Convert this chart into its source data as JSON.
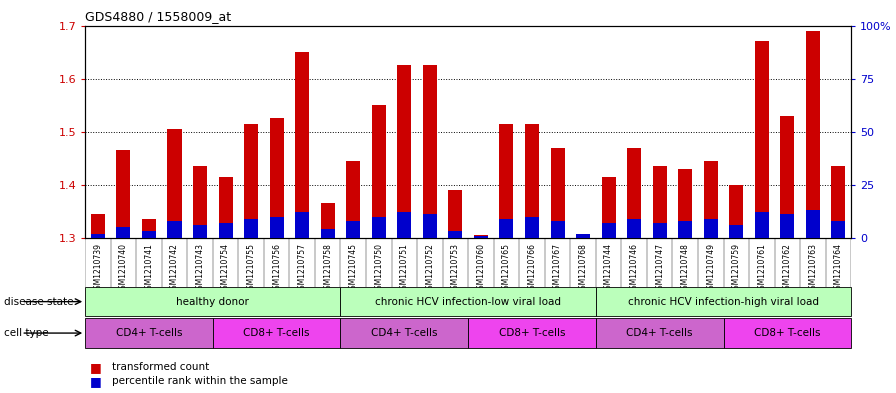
{
  "title": "GDS4880 / 1558009_at",
  "samples": [
    "GSM1210739",
    "GSM1210740",
    "GSM1210741",
    "GSM1210742",
    "GSM1210743",
    "GSM1210754",
    "GSM1210755",
    "GSM1210756",
    "GSM1210757",
    "GSM1210758",
    "GSM1210745",
    "GSM1210750",
    "GSM1210751",
    "GSM1210752",
    "GSM1210753",
    "GSM1210760",
    "GSM1210765",
    "GSM1210766",
    "GSM1210767",
    "GSM1210768",
    "GSM1210744",
    "GSM1210746",
    "GSM1210747",
    "GSM1210748",
    "GSM1210749",
    "GSM1210759",
    "GSM1210761",
    "GSM1210762",
    "GSM1210763",
    "GSM1210764"
  ],
  "transformed_count": [
    1.345,
    1.465,
    1.335,
    1.505,
    1.435,
    1.415,
    1.515,
    1.525,
    1.65,
    1.365,
    1.445,
    1.55,
    1.625,
    1.625,
    1.39,
    1.305,
    1.515,
    1.515,
    1.47,
    1.3,
    1.415,
    1.47,
    1.435,
    1.43,
    1.445,
    1.4,
    1.67,
    1.53,
    1.69,
    1.435
  ],
  "percentile_rank": [
    2,
    5,
    3,
    8,
    6,
    7,
    9,
    10,
    12,
    4,
    8,
    10,
    12,
    11,
    3,
    1,
    9,
    10,
    8,
    2,
    7,
    9,
    7,
    8,
    9,
    6,
    12,
    11,
    13,
    8
  ],
  "ylim_left": [
    1.3,
    1.7
  ],
  "ylim_right": [
    0,
    100
  ],
  "yticks_left": [
    1.3,
    1.4,
    1.5,
    1.6,
    1.7
  ],
  "yticks_right": [
    0,
    25,
    50,
    75,
    100
  ],
  "bar_color_red": "#cc0000",
  "bar_color_blue": "#0000cc",
  "grid_yticks": [
    1.4,
    1.5,
    1.6
  ],
  "ds_groups": [
    {
      "label": "healthy donor",
      "start": 0,
      "end": 9,
      "color": "#bbffbb"
    },
    {
      "label": "chronic HCV infection-low viral load",
      "start": 10,
      "end": 19,
      "color": "#bbffbb"
    },
    {
      "label": "chronic HCV infection-high viral load",
      "start": 20,
      "end": 29,
      "color": "#bbffbb"
    }
  ],
  "ct_groups": [
    {
      "label": "CD4+ T-cells",
      "start": 0,
      "end": 4,
      "color": "#cc66cc"
    },
    {
      "label": "CD8+ T-cells",
      "start": 5,
      "end": 9,
      "color": "#ee44ee"
    },
    {
      "label": "CD4+ T-cells",
      "start": 10,
      "end": 14,
      "color": "#cc66cc"
    },
    {
      "label": "CD8+ T-cells",
      "start": 15,
      "end": 19,
      "color": "#ee44ee"
    },
    {
      "label": "CD4+ T-cells",
      "start": 20,
      "end": 24,
      "color": "#cc66cc"
    },
    {
      "label": "CD8+ T-cells",
      "start": 25,
      "end": 29,
      "color": "#ee44ee"
    }
  ],
  "disease_state_label": "disease state",
  "cell_type_label": "cell type",
  "legend_red_label": "transformed count",
  "legend_blue_label": "percentile rank within the sample",
  "background_color": "#ffffff",
  "plot_bg_color": "#ffffff",
  "tick_color_left": "#cc0000",
  "tick_color_right": "#0000cc",
  "bar_width": 0.55
}
